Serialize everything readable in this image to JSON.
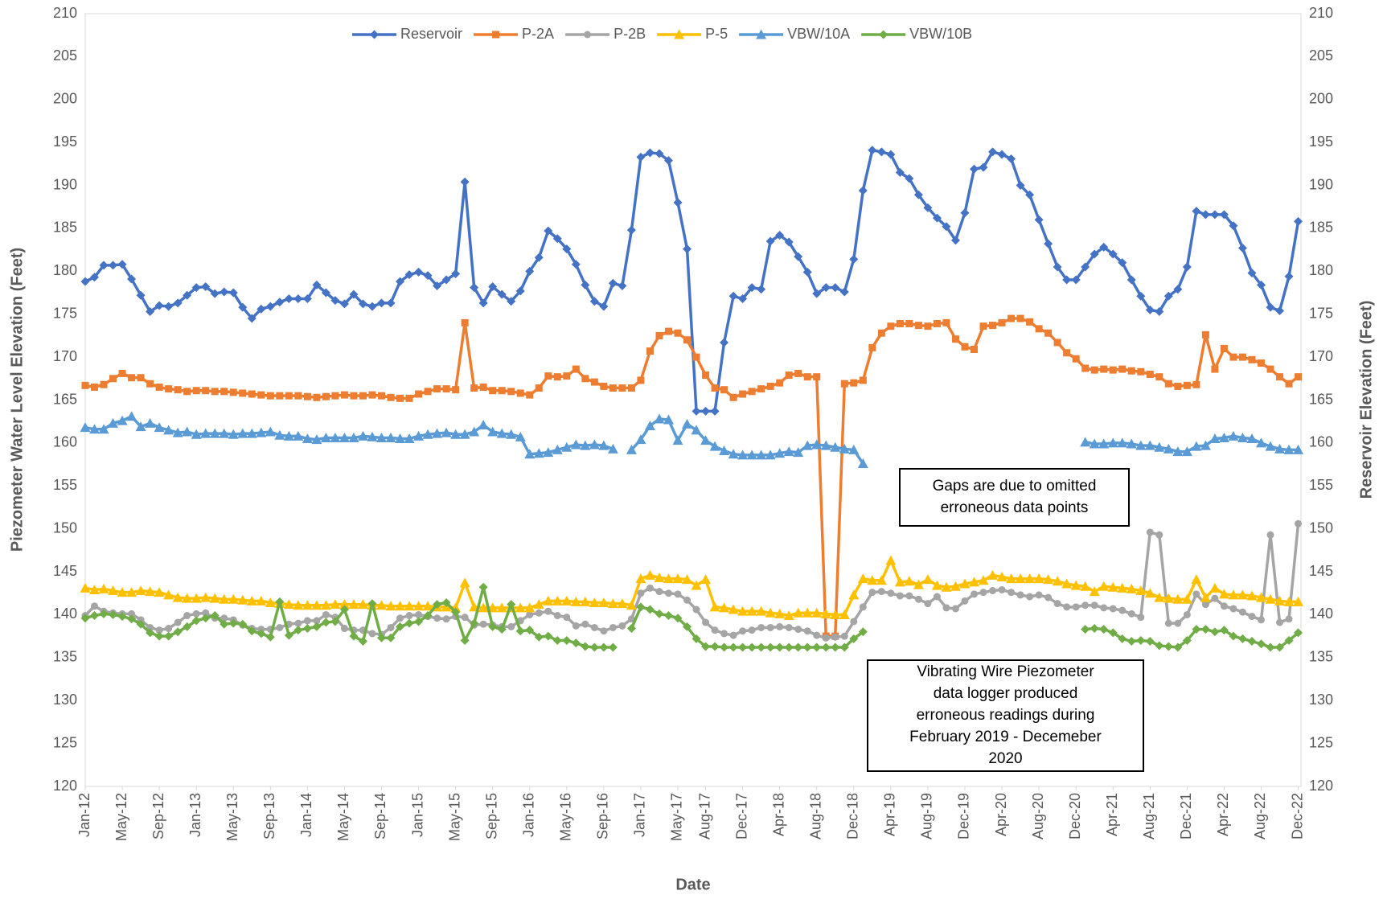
{
  "chart_data": {
    "type": "line",
    "x_label": "Date",
    "y_label": "Piezometer Water Level Elevation (Feet)",
    "y2_label": "Reservoir Elevation (Feet)",
    "ylim": [
      120,
      210
    ],
    "yticks": [
      120,
      125,
      130,
      135,
      140,
      145,
      150,
      155,
      160,
      165,
      170,
      175,
      180,
      185,
      190,
      195,
      200,
      205,
      210
    ],
    "y2lim": [
      120,
      210
    ],
    "y2ticks": [
      120,
      125,
      130,
      135,
      140,
      145,
      150,
      155,
      160,
      165,
      170,
      175,
      180,
      185,
      190,
      195,
      200,
      205,
      210
    ],
    "grid": false,
    "legend": "top",
    "categories": [
      "Jan-12",
      null,
      null,
      null,
      "May-12",
      null,
      null,
      null,
      "Sep-12",
      null,
      null,
      null,
      "Jan-13",
      null,
      null,
      null,
      "May-13",
      null,
      null,
      null,
      "Sep-13",
      null,
      null,
      null,
      "Jan-14",
      null,
      null,
      null,
      "May-14",
      null,
      null,
      null,
      "Sep-14",
      null,
      null,
      null,
      "Jan-15",
      null,
      null,
      null,
      "May-15",
      null,
      null,
      null,
      "Sep-15",
      null,
      null,
      null,
      "Jan-16",
      null,
      null,
      null,
      "May-16",
      null,
      null,
      null,
      "Sep-16",
      null,
      null,
      null,
      "Jan-17",
      null,
      null,
      null,
      "May-17",
      null,
      null,
      "Aug-17",
      null,
      null,
      null,
      "Dec-17",
      null,
      null,
      null,
      "Apr-18",
      null,
      null,
      null,
      "Aug-18",
      null,
      null,
      null,
      "Dec-18",
      null,
      null,
      null,
      "Apr-19",
      null,
      null,
      null,
      "Aug-19",
      null,
      null,
      null,
      "Dec-19",
      null,
      null,
      null,
      "Apr-20",
      null,
      null,
      null,
      "Aug-20",
      null,
      null,
      null,
      "Dec-20",
      null,
      null,
      null,
      "Apr-21",
      null,
      null,
      null,
      "Aug-21",
      null,
      null,
      null,
      "Dec-21",
      null,
      null,
      null,
      "Apr-22",
      null,
      null,
      null,
      "Aug-22",
      null,
      null,
      null,
      "Dec-22"
    ],
    "series": [
      {
        "name": "Reservoir",
        "color": "#4472c4",
        "marker": "diamond",
        "axis": "y2",
        "values": [
          178.8,
          179.3,
          180.7,
          180.7,
          180.8,
          179.1,
          177.2,
          175.3,
          176.0,
          175.9,
          176.3,
          177.2,
          178.1,
          178.2,
          177.4,
          177.6,
          177.5,
          175.8,
          174.5,
          175.6,
          175.9,
          176.4,
          176.8,
          176.8,
          176.8,
          178.4,
          177.5,
          176.6,
          176.2,
          177.3,
          176.2,
          175.9,
          176.3,
          176.3,
          178.8,
          179.6,
          179.9,
          179.5,
          178.3,
          179.0,
          179.7,
          190.4,
          178.1,
          176.3,
          178.2,
          177.3,
          176.5,
          177.7,
          180.0,
          181.6,
          184.7,
          183.8,
          182.6,
          180.8,
          178.4,
          176.5,
          175.9,
          178.6,
          178.3,
          184.8,
          193.3,
          193.8,
          193.7,
          192.9,
          188.0,
          182.6,
          163.7,
          163.7,
          163.7,
          171.7,
          177.1,
          176.8,
          178.1,
          177.9,
          183.5,
          184.2,
          183.4,
          181.7,
          179.9,
          177.4,
          178.1,
          178.1,
          177.6,
          181.4,
          189.4,
          194.1,
          193.9,
          193.6,
          191.5,
          190.8,
          188.9,
          187.4,
          186.2,
          185.2,
          183.6,
          186.8,
          191.9,
          192.1,
          193.9,
          193.6,
          193.1,
          190.0,
          188.9,
          186.0,
          183.2,
          180.5,
          179.0,
          179.0,
          180.5,
          182.0,
          182.8,
          182.0,
          181.0,
          179.0,
          177.1,
          175.5,
          175.3,
          177.1,
          177.9,
          180.5,
          187.0,
          186.6,
          186.6,
          186.6,
          185.3,
          182.7,
          179.8,
          178.4,
          175.8,
          175.4,
          179.4,
          185.8
        ]
      },
      {
        "name": "P-2A",
        "color": "#ed7d31",
        "marker": "square",
        "values": [
          166.7,
          166.5,
          166.8,
          167.5,
          168.1,
          167.6,
          167.6,
          166.9,
          166.5,
          166.3,
          166.2,
          166.0,
          166.1,
          166.1,
          166.0,
          166.0,
          165.9,
          165.8,
          165.7,
          165.6,
          165.5,
          165.5,
          165.5,
          165.5,
          165.4,
          165.3,
          165.4,
          165.5,
          165.6,
          165.5,
          165.5,
          165.6,
          165.5,
          165.3,
          165.2,
          165.2,
          165.7,
          166.0,
          166.3,
          166.3,
          166.2,
          174.0,
          166.4,
          166.5,
          166.1,
          166.1,
          166.0,
          165.8,
          165.6,
          166.4,
          167.8,
          167.7,
          167.8,
          168.6,
          167.5,
          167.1,
          166.6,
          166.4,
          166.4,
          166.4,
          167.3,
          170.7,
          172.5,
          173.0,
          172.8,
          172.0,
          170.0,
          167.9,
          166.4,
          166.2,
          165.3,
          165.7,
          166.0,
          166.3,
          166.6,
          167.0,
          167.9,
          168.1,
          167.7,
          167.7,
          137.5,
          137.5,
          166.9,
          167.0,
          167.3,
          171.1,
          172.8,
          173.6,
          173.9,
          173.9,
          173.7,
          173.6,
          173.9,
          174.0,
          172.1,
          171.2,
          170.9,
          173.6,
          173.7,
          174.0,
          174.5,
          174.5,
          174.1,
          173.3,
          172.8,
          171.7,
          170.5,
          169.8,
          168.7,
          168.5,
          168.6,
          168.5,
          168.6,
          168.4,
          168.3,
          168.0,
          167.7,
          166.9,
          166.6,
          166.7,
          166.8,
          172.6,
          168.6,
          171.0,
          170.0,
          170.0,
          169.7,
          169.3,
          168.6,
          167.7,
          166.9,
          167.7
        ]
      },
      {
        "name": "P-2B",
        "color": "#a5a5a5",
        "marker": "circle",
        "values": [
          139.9,
          141.0,
          140.4,
          140.2,
          140.1,
          140.1,
          139.4,
          138.5,
          138.2,
          138.4,
          139.1,
          139.9,
          140.1,
          140.2,
          139.6,
          139.6,
          139.4,
          138.8,
          138.4,
          138.3,
          138.3,
          138.5,
          138.9,
          139.0,
          139.3,
          139.3,
          140.0,
          139.7,
          138.4,
          138.2,
          138.2,
          137.8,
          137.7,
          138.5,
          139.6,
          139.9,
          140.0,
          139.8,
          139.6,
          139.5,
          139.8,
          139.7,
          138.8,
          138.9,
          138.8,
          138.6,
          138.6,
          139.3,
          140.0,
          140.2,
          140.4,
          139.9,
          139.7,
          138.7,
          138.9,
          138.5,
          138.1,
          138.5,
          138.7,
          139.5,
          142.5,
          143.1,
          142.7,
          142.5,
          142.4,
          141.7,
          140.6,
          139.1,
          138.2,
          137.8,
          137.6,
          138.1,
          138.2,
          138.5,
          138.5,
          138.6,
          138.5,
          138.3,
          138.1,
          137.6,
          137.3,
          137.4,
          137.5,
          139.2,
          140.9,
          142.6,
          142.7,
          142.5,
          142.2,
          142.2,
          141.8,
          141.3,
          142.1,
          140.8,
          140.7,
          141.6,
          142.4,
          142.6,
          142.8,
          142.9,
          142.6,
          142.3,
          142.1,
          142.3,
          142.0,
          141.3,
          140.9,
          140.9,
          141.1,
          141.1,
          140.8,
          140.7,
          140.5,
          140.1,
          139.7,
          149.6,
          149.3,
          139.0,
          139.0,
          140.0,
          142.4,
          141.2,
          141.9,
          141.0,
          140.7,
          140.3,
          139.8,
          139.4,
          149.3,
          139.1,
          139.5,
          150.6
        ]
      },
      {
        "name": "P-5",
        "color": "#ffc000",
        "marker": "triangle",
        "values": [
          143.1,
          142.9,
          143.0,
          142.8,
          142.6,
          142.6,
          142.8,
          142.7,
          142.6,
          142.3,
          142.0,
          141.9,
          141.9,
          142.0,
          141.9,
          141.8,
          141.8,
          141.7,
          141.6,
          141.6,
          141.4,
          141.3,
          141.2,
          141.1,
          141.1,
          141.1,
          141.1,
          141.2,
          141.2,
          141.2,
          141.2,
          141.1,
          141.1,
          141.0,
          141.0,
          141.0,
          141.0,
          141.0,
          140.9,
          140.9,
          140.8,
          143.7,
          140.9,
          140.8,
          140.8,
          140.8,
          140.8,
          140.8,
          140.8,
          141.2,
          141.6,
          141.6,
          141.6,
          141.5,
          141.5,
          141.4,
          141.4,
          141.3,
          141.3,
          141.1,
          144.2,
          144.6,
          144.3,
          144.2,
          144.2,
          144.1,
          143.4,
          144.1,
          140.9,
          140.8,
          140.6,
          140.4,
          140.4,
          140.4,
          140.2,
          140.1,
          139.9,
          140.2,
          140.2,
          140.2,
          140.1,
          140.0,
          140.0,
          142.3,
          144.2,
          144.0,
          144.0,
          146.3,
          143.8,
          143.9,
          143.5,
          144.1,
          143.4,
          143.2,
          143.3,
          143.6,
          143.8,
          144.0,
          144.6,
          144.4,
          144.2,
          144.2,
          144.2,
          144.2,
          144.1,
          143.9,
          143.6,
          143.4,
          143.3,
          142.7,
          143.3,
          143.2,
          143.1,
          143.0,
          142.8,
          142.5,
          142.0,
          141.9,
          141.8,
          141.8,
          144.1,
          142.0,
          143.1,
          142.4,
          142.3,
          142.3,
          142.2,
          142.0,
          141.8,
          141.6,
          141.5,
          141.5
        ]
      },
      {
        "name": "VBW/10A",
        "color": "#5b9bd5",
        "marker": "triangle",
        "values": [
          161.8,
          161.6,
          161.6,
          162.3,
          162.6,
          163.1,
          161.9,
          162.3,
          161.8,
          161.5,
          161.2,
          161.3,
          161.0,
          161.1,
          161.1,
          161.1,
          161.0,
          161.1,
          161.1,
          161.2,
          161.3,
          160.9,
          160.8,
          160.8,
          160.5,
          160.4,
          160.6,
          160.6,
          160.6,
          160.6,
          160.8,
          160.7,
          160.6,
          160.6,
          160.5,
          160.5,
          160.8,
          161.0,
          161.1,
          161.2,
          161.0,
          161.0,
          161.3,
          162.1,
          161.3,
          161.1,
          161.0,
          160.7,
          158.7,
          158.8,
          158.9,
          159.2,
          159.5,
          159.8,
          159.7,
          159.8,
          159.7,
          159.3,
          null,
          159.2,
          160.4,
          162.0,
          162.8,
          162.7,
          160.3,
          162.2,
          161.5,
          160.3,
          159.6,
          159.1,
          158.7,
          158.6,
          158.6,
          158.6,
          158.6,
          158.8,
          159.0,
          158.9,
          159.7,
          159.8,
          159.7,
          159.5,
          159.3,
          159.2,
          157.6,
          null,
          null,
          null,
          null,
          null,
          null,
          null,
          null,
          null,
          null,
          null,
          null,
          null,
          null,
          null,
          null,
          null,
          null,
          null,
          null,
          null,
          null,
          null,
          160.1,
          159.9,
          159.9,
          160.0,
          160.0,
          159.9,
          159.7,
          159.7,
          159.5,
          159.3,
          159.0,
          159.0,
          159.6,
          159.7,
          160.5,
          160.6,
          160.8,
          160.6,
          160.5,
          160.0,
          159.6,
          159.3,
          159.2,
          159.2
        ]
      },
      {
        "name": "VBW/10B",
        "color": "#70ad47",
        "marker": "diamond",
        "values": [
          139.6,
          139.9,
          140.1,
          140.0,
          139.8,
          139.5,
          138.9,
          137.9,
          137.5,
          137.5,
          138.0,
          138.6,
          139.3,
          139.6,
          139.9,
          138.9,
          139.0,
          138.9,
          138.1,
          137.8,
          137.4,
          141.5,
          137.6,
          138.2,
          138.4,
          138.6,
          139.1,
          139.2,
          140.6,
          137.5,
          136.9,
          141.3,
          137.3,
          137.3,
          138.6,
          139.0,
          139.2,
          139.9,
          141.2,
          141.4,
          140.3,
          137.0,
          139.0,
          143.2,
          138.6,
          138.3,
          141.2,
          138.1,
          138.2,
          137.4,
          137.5,
          137.0,
          137.0,
          136.7,
          136.3,
          136.2,
          136.2,
          136.2,
          null,
          138.4,
          140.9,
          140.6,
          140.1,
          139.9,
          139.6,
          138.6,
          137.2,
          136.3,
          136.3,
          136.2,
          136.2,
          136.2,
          136.2,
          136.2,
          136.2,
          136.2,
          136.2,
          136.2,
          136.2,
          136.2,
          136.2,
          136.2,
          136.2,
          137.2,
          138.0,
          null,
          null,
          null,
          null,
          null,
          null,
          null,
          null,
          null,
          null,
          null,
          null,
          null,
          null,
          null,
          null,
          null,
          null,
          null,
          null,
          null,
          null,
          null,
          138.3,
          138.4,
          138.3,
          137.9,
          137.2,
          136.9,
          137.0,
          136.9,
          136.4,
          136.3,
          136.2,
          137.0,
          138.3,
          138.3,
          138.0,
          138.2,
          137.5,
          137.2,
          136.9,
          136.6,
          136.2,
          136.2,
          137.0,
          137.9
        ]
      }
    ],
    "annotations": [
      {
        "text": [
          "Gaps are due to omitted",
          "erroneous data points"
        ]
      },
      {
        "text": [
          "Vibrating Wire Piezometer",
          "data logger produced",
          "erroneous readings during",
          "February 2019 - Decemeber",
          "2020"
        ]
      }
    ]
  }
}
